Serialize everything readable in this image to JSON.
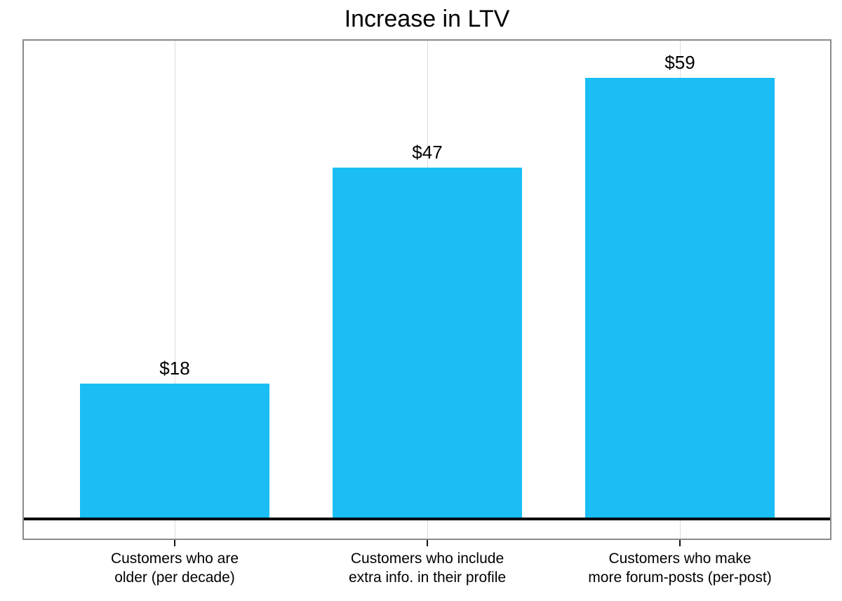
{
  "chart_data": {
    "type": "bar",
    "title": "Increase in LTV",
    "categories": [
      "Customers who are\nolder (per decade)",
      "Customers who include\nextra info. in their profile",
      "Customers who make\nmore forum-posts (per-post)"
    ],
    "values": [
      18,
      47,
      59
    ],
    "value_labels": [
      "$18",
      "$47",
      "$59"
    ],
    "xlabel": "",
    "ylabel": "",
    "ylim": [
      0,
      64
    ],
    "grid": "vertical gridline at each category center",
    "legend": "none",
    "y_axis_ticks": "none",
    "bar_color": "#1abef5"
  }
}
